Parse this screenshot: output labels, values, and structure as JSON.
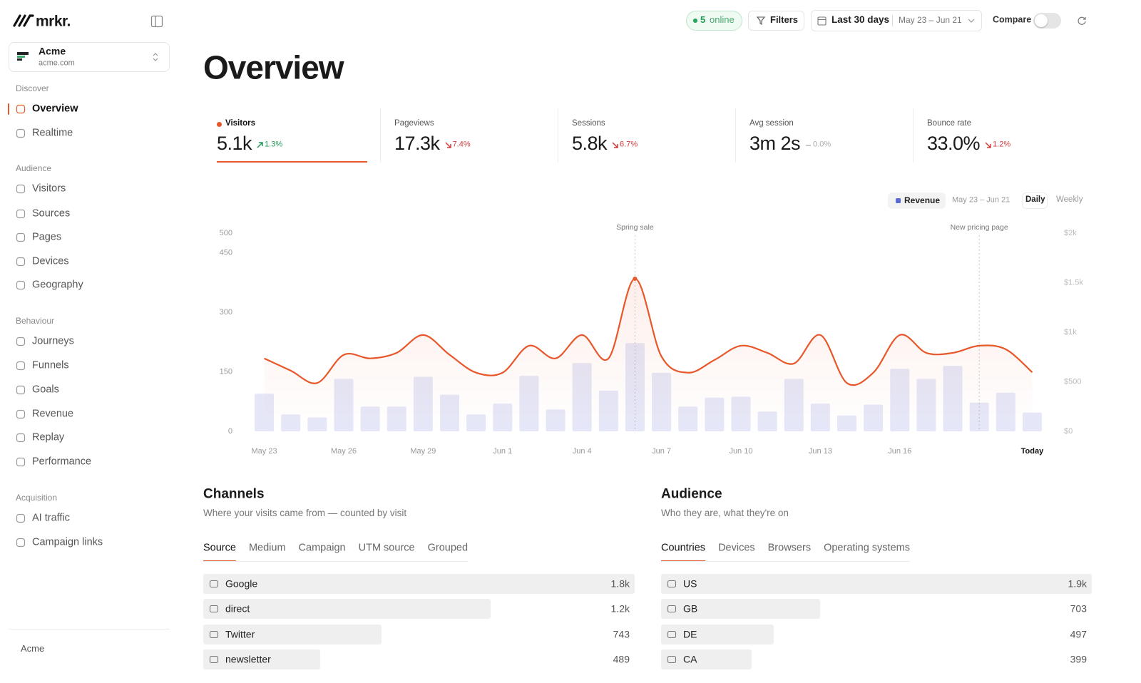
{
  "sidebar": {
    "brand": "mrkr.",
    "workspace": {
      "name": "Acme",
      "domain": "acme.com"
    },
    "sections": [
      {
        "title": "Discover",
        "items": [
          {
            "label": "Overview",
            "active": true
          },
          {
            "label": "Realtime"
          }
        ]
      },
      {
        "title": "Audience",
        "items": [
          {
            "label": "Visitors"
          },
          {
            "label": "Sources"
          },
          {
            "label": "Pages"
          },
          {
            "label": "Devices"
          },
          {
            "label": "Geography"
          }
        ]
      },
      {
        "title": "Behaviour",
        "items": [
          {
            "label": "Journeys"
          },
          {
            "label": "Funnels"
          },
          {
            "label": "Goals"
          },
          {
            "label": "Revenue"
          },
          {
            "label": "Replay"
          },
          {
            "label": "Performance"
          }
        ]
      },
      {
        "title": "Acquisition",
        "items": [
          {
            "label": "AI traffic"
          },
          {
            "label": "Campaign links"
          }
        ]
      }
    ],
    "footer": "Acme"
  },
  "topbar": {
    "online_count": 5,
    "online_label": "online",
    "filters": "Filters",
    "range": "Last 30 days",
    "range_dates": "May 23 – Jun 21",
    "compare": "Compare"
  },
  "title": "Overview",
  "kpis": [
    {
      "label": "Visitors",
      "value": "5.1k",
      "change": "1.3%",
      "trend": "up",
      "active": true
    },
    {
      "label": "Pageviews",
      "value": "17.3k",
      "change": "7.4%",
      "trend": "down"
    },
    {
      "label": "Sessions",
      "value": "5.8k",
      "change": "6.7%",
      "trend": "down"
    },
    {
      "label": "Avg session",
      "value": "3m 2s",
      "change": "0.0%",
      "trend": "flat"
    },
    {
      "label": "Bounce rate",
      "value": "33.0%",
      "change": "1.2%",
      "trend": "down"
    }
  ],
  "chart_data": {
    "type": "combo",
    "period": "May 23 – Jun 21",
    "intervals": [
      "Daily",
      "Weekly"
    ],
    "active_interval": 0,
    "categories": [
      "May 23",
      null,
      null,
      "May 26",
      null,
      null,
      "May 29",
      null,
      null,
      "Jun 1",
      null,
      null,
      "Jun 4",
      null,
      null,
      "Jun 7",
      null,
      null,
      "Jun 10",
      null,
      null,
      "Jun 13",
      null,
      null,
      "Jun 16",
      null,
      null,
      null,
      null,
      "Today"
    ],
    "series": [
      {
        "type": "line",
        "color": "#e8572a",
        "values": [
          184,
          153,
          122,
          193,
          184,
          198,
          243,
          193,
          148,
          148,
          216,
          184,
          243,
          184,
          385,
          189,
          148,
          180,
          216,
          198,
          171,
          243,
          122,
          148,
          243,
          198,
          198,
          216,
          207,
          149
        ]
      },
      {
        "name": "Revenue",
        "type": "bar",
        "axis": "y2",
        "color": "#5b6bd6",
        "values": [
          380,
          170,
          140,
          530,
          250,
          250,
          550,
          370,
          170,
          280,
          560,
          220,
          690,
          410,
          890,
          590,
          250,
          340,
          350,
          200,
          530,
          280,
          160,
          270,
          630,
          530,
          660,
          290,
          390,
          190
        ]
      }
    ],
    "ylim": [
      0,
      500
    ],
    "yticks": [
      0,
      150,
      300,
      450,
      500
    ],
    "y2lim": [
      0,
      2000
    ],
    "y2ticks": [
      {
        "value": 0,
        "label": "$0"
      },
      {
        "value": 500,
        "label": "$500"
      },
      {
        "value": 1000,
        "label": "$1k"
      },
      {
        "value": 1500,
        "label": "$1.5k"
      },
      {
        "value": 2000,
        "label": "$2k"
      }
    ],
    "annotations": [
      {
        "text": "Spring sale",
        "index": 14,
        "marker": true
      },
      {
        "text": "New pricing page",
        "index": 27
      }
    ]
  },
  "channels": {
    "title": "Channels",
    "subtitle": "Where your visits came from — counted by visit",
    "tabs": [
      "Source",
      "Medium",
      "Campaign",
      "UTM source",
      "Grouped"
    ],
    "active_tab": 0,
    "list": {
      "labels": [
        "Google",
        "direct",
        "Twitter",
        "newsletter"
      ],
      "values": [
        1800,
        1200,
        743,
        489
      ],
      "value_labels": [
        "1.8k",
        "1.2k",
        "743",
        "489"
      ]
    }
  },
  "audience": {
    "title": "Audience",
    "subtitle": "Who they are, what they're on",
    "tabs": [
      "Countries",
      "Devices",
      "Browsers",
      "Operating systems"
    ],
    "active_tab": 0,
    "list": {
      "labels": [
        "US",
        "GB",
        "DE",
        "CA"
      ],
      "values": [
        1900,
        703,
        497,
        399
      ],
      "value_labels": [
        "1.9k",
        "703",
        "497",
        "399"
      ]
    }
  }
}
